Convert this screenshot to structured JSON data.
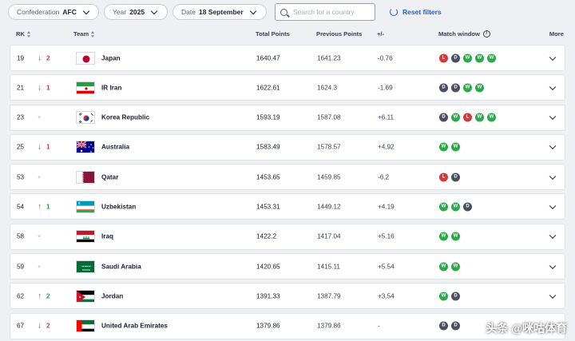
{
  "filters": {
    "confederation_label": "Confederation",
    "confederation_value": "AFC",
    "year_label": "Year",
    "year_value": "2025",
    "date_label": "Date",
    "date_value": "18 September",
    "search_placeholder": "Search for a country",
    "reset_label": "Reset filters"
  },
  "columns": {
    "rank": "RK",
    "team": "Team",
    "total_points": "Total Points",
    "previous_points": "Previous Points",
    "diff": "+/-",
    "match_window": "Match window",
    "more": "More"
  },
  "colors": {
    "win": "#2aa84a",
    "draw": "#4a4f60",
    "loss": "#d63838",
    "up": "#2e9e4a",
    "down": "#d63838",
    "accent": "#1a5fd8"
  },
  "rows": [
    {
      "rank": "19",
      "dir": "down",
      "move": "2",
      "flag": "japan",
      "team": "Japan",
      "points": "1640.47",
      "prev": "1641.23",
      "diff": "-0.76",
      "results": [
        "L",
        "D",
        "W",
        "W",
        "W"
      ]
    },
    {
      "rank": "21",
      "dir": "down",
      "move": "1",
      "flag": "iran",
      "team": "IR Iran",
      "points": "1622.61",
      "prev": "1624.3",
      "diff": "-1.69",
      "results": [
        "D",
        "D",
        "W",
        "W"
      ]
    },
    {
      "rank": "23",
      "dir": "same",
      "move": "",
      "flag": "korea",
      "team": "Korea Republic",
      "points": "1593.19",
      "prev": "1587.08",
      "diff": "+6.11",
      "results": [
        "D",
        "W",
        "L",
        "W",
        "W"
      ]
    },
    {
      "rank": "25",
      "dir": "down",
      "move": "1",
      "flag": "australia",
      "team": "Australia",
      "points": "1583.49",
      "prev": "1578.57",
      "diff": "+4.92",
      "results": [
        "W",
        "W"
      ]
    },
    {
      "rank": "53",
      "dir": "same",
      "move": "",
      "flag": "qatar",
      "team": "Qatar",
      "points": "1453.65",
      "prev": "1459.85",
      "diff": "-6.2",
      "results": [
        "L",
        "D"
      ]
    },
    {
      "rank": "54",
      "dir": "up",
      "move": "1",
      "flag": "uzbekistan",
      "team": "Uzbekistan",
      "points": "1453.31",
      "prev": "1449.12",
      "diff": "+4.19",
      "results": [
        "W",
        "W",
        "D"
      ]
    },
    {
      "rank": "58",
      "dir": "same",
      "move": "",
      "flag": "iraq",
      "team": "Iraq",
      "points": "1422.2",
      "prev": "1417.04",
      "diff": "+5.16",
      "results": [
        "W",
        "W"
      ]
    },
    {
      "rank": "59",
      "dir": "same",
      "move": "",
      "flag": "saudi",
      "team": "Saudi Arabia",
      "points": "1420.65",
      "prev": "1415.11",
      "diff": "+5.54",
      "results": [
        "W",
        "W"
      ]
    },
    {
      "rank": "62",
      "dir": "up",
      "move": "2",
      "flag": "jordan",
      "team": "Jordan",
      "points": "1391.33",
      "prev": "1387.79",
      "diff": "+3.54",
      "results": [
        "W",
        "D"
      ]
    },
    {
      "rank": "67",
      "dir": "down",
      "move": "2",
      "flag": "uae",
      "team": "United Arab Emirates",
      "points": "1379.86",
      "prev": "1379.86",
      "diff": "-",
      "results": [
        "D",
        "D"
      ]
    }
  ],
  "watermark": "头条 @咪咕体育"
}
